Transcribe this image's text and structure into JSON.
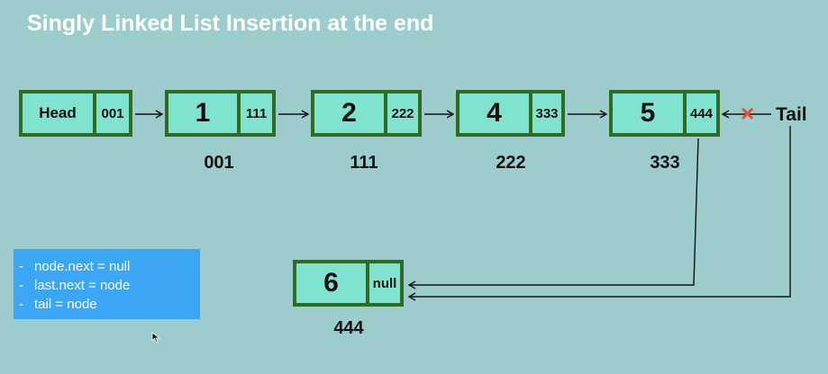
{
  "title": "Singly Linked List Insertion at the end",
  "head_node": {
    "label": "Head",
    "pointer": "001"
  },
  "nodes": [
    {
      "value": "1",
      "next": "111",
      "address": "001"
    },
    {
      "value": "2",
      "next": "222",
      "address": "111"
    },
    {
      "value": "4",
      "next": "333",
      "address": "222"
    },
    {
      "value": "5",
      "next": "444",
      "address": "333"
    }
  ],
  "new_node": {
    "value": "6",
    "next": "null",
    "address": "444"
  },
  "tail_label": "Tail",
  "removed_marker": "×",
  "steps": [
    {
      "text": "node.next = null"
    },
    {
      "text": "last.next = node"
    },
    {
      "text": "tail = node"
    }
  ],
  "colors": {
    "background": "#9ccccc",
    "node_fill": "#7fe3cf",
    "node_border": "#2f6b22",
    "steps_box": "#3aa6f5",
    "cross": "#e8503a"
  }
}
